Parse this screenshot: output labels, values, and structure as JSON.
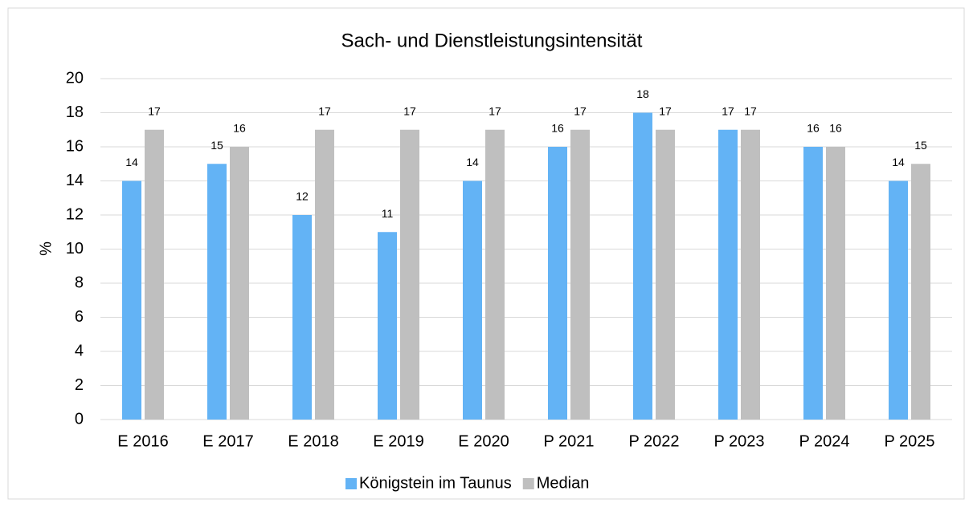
{
  "chart_data": {
    "type": "bar",
    "title": "Sach- und Dienstleistungsintensität",
    "y_label": "%",
    "categories": [
      "E 2016",
      "E 2017",
      "E 2018",
      "E 2019",
      "E 2020",
      "P 2021",
      "P 2022",
      "P 2023",
      "P 2024",
      "P 2025"
    ],
    "series": [
      {
        "name": "Königstein im Taunus",
        "color": "#63b3f5",
        "values": [
          14,
          15,
          12,
          11,
          14,
          16,
          18,
          17,
          16,
          14
        ]
      },
      {
        "name": "Median",
        "color": "#bfbfbf",
        "values": [
          17,
          16,
          17,
          17,
          17,
          17,
          17,
          17,
          16,
          15
        ]
      }
    ],
    "ylim": [
      0,
      20
    ],
    "yticks": [
      0,
      2,
      4,
      6,
      8,
      10,
      12,
      14,
      16,
      18,
      20
    ],
    "grid": true,
    "legend": "bottom"
  }
}
